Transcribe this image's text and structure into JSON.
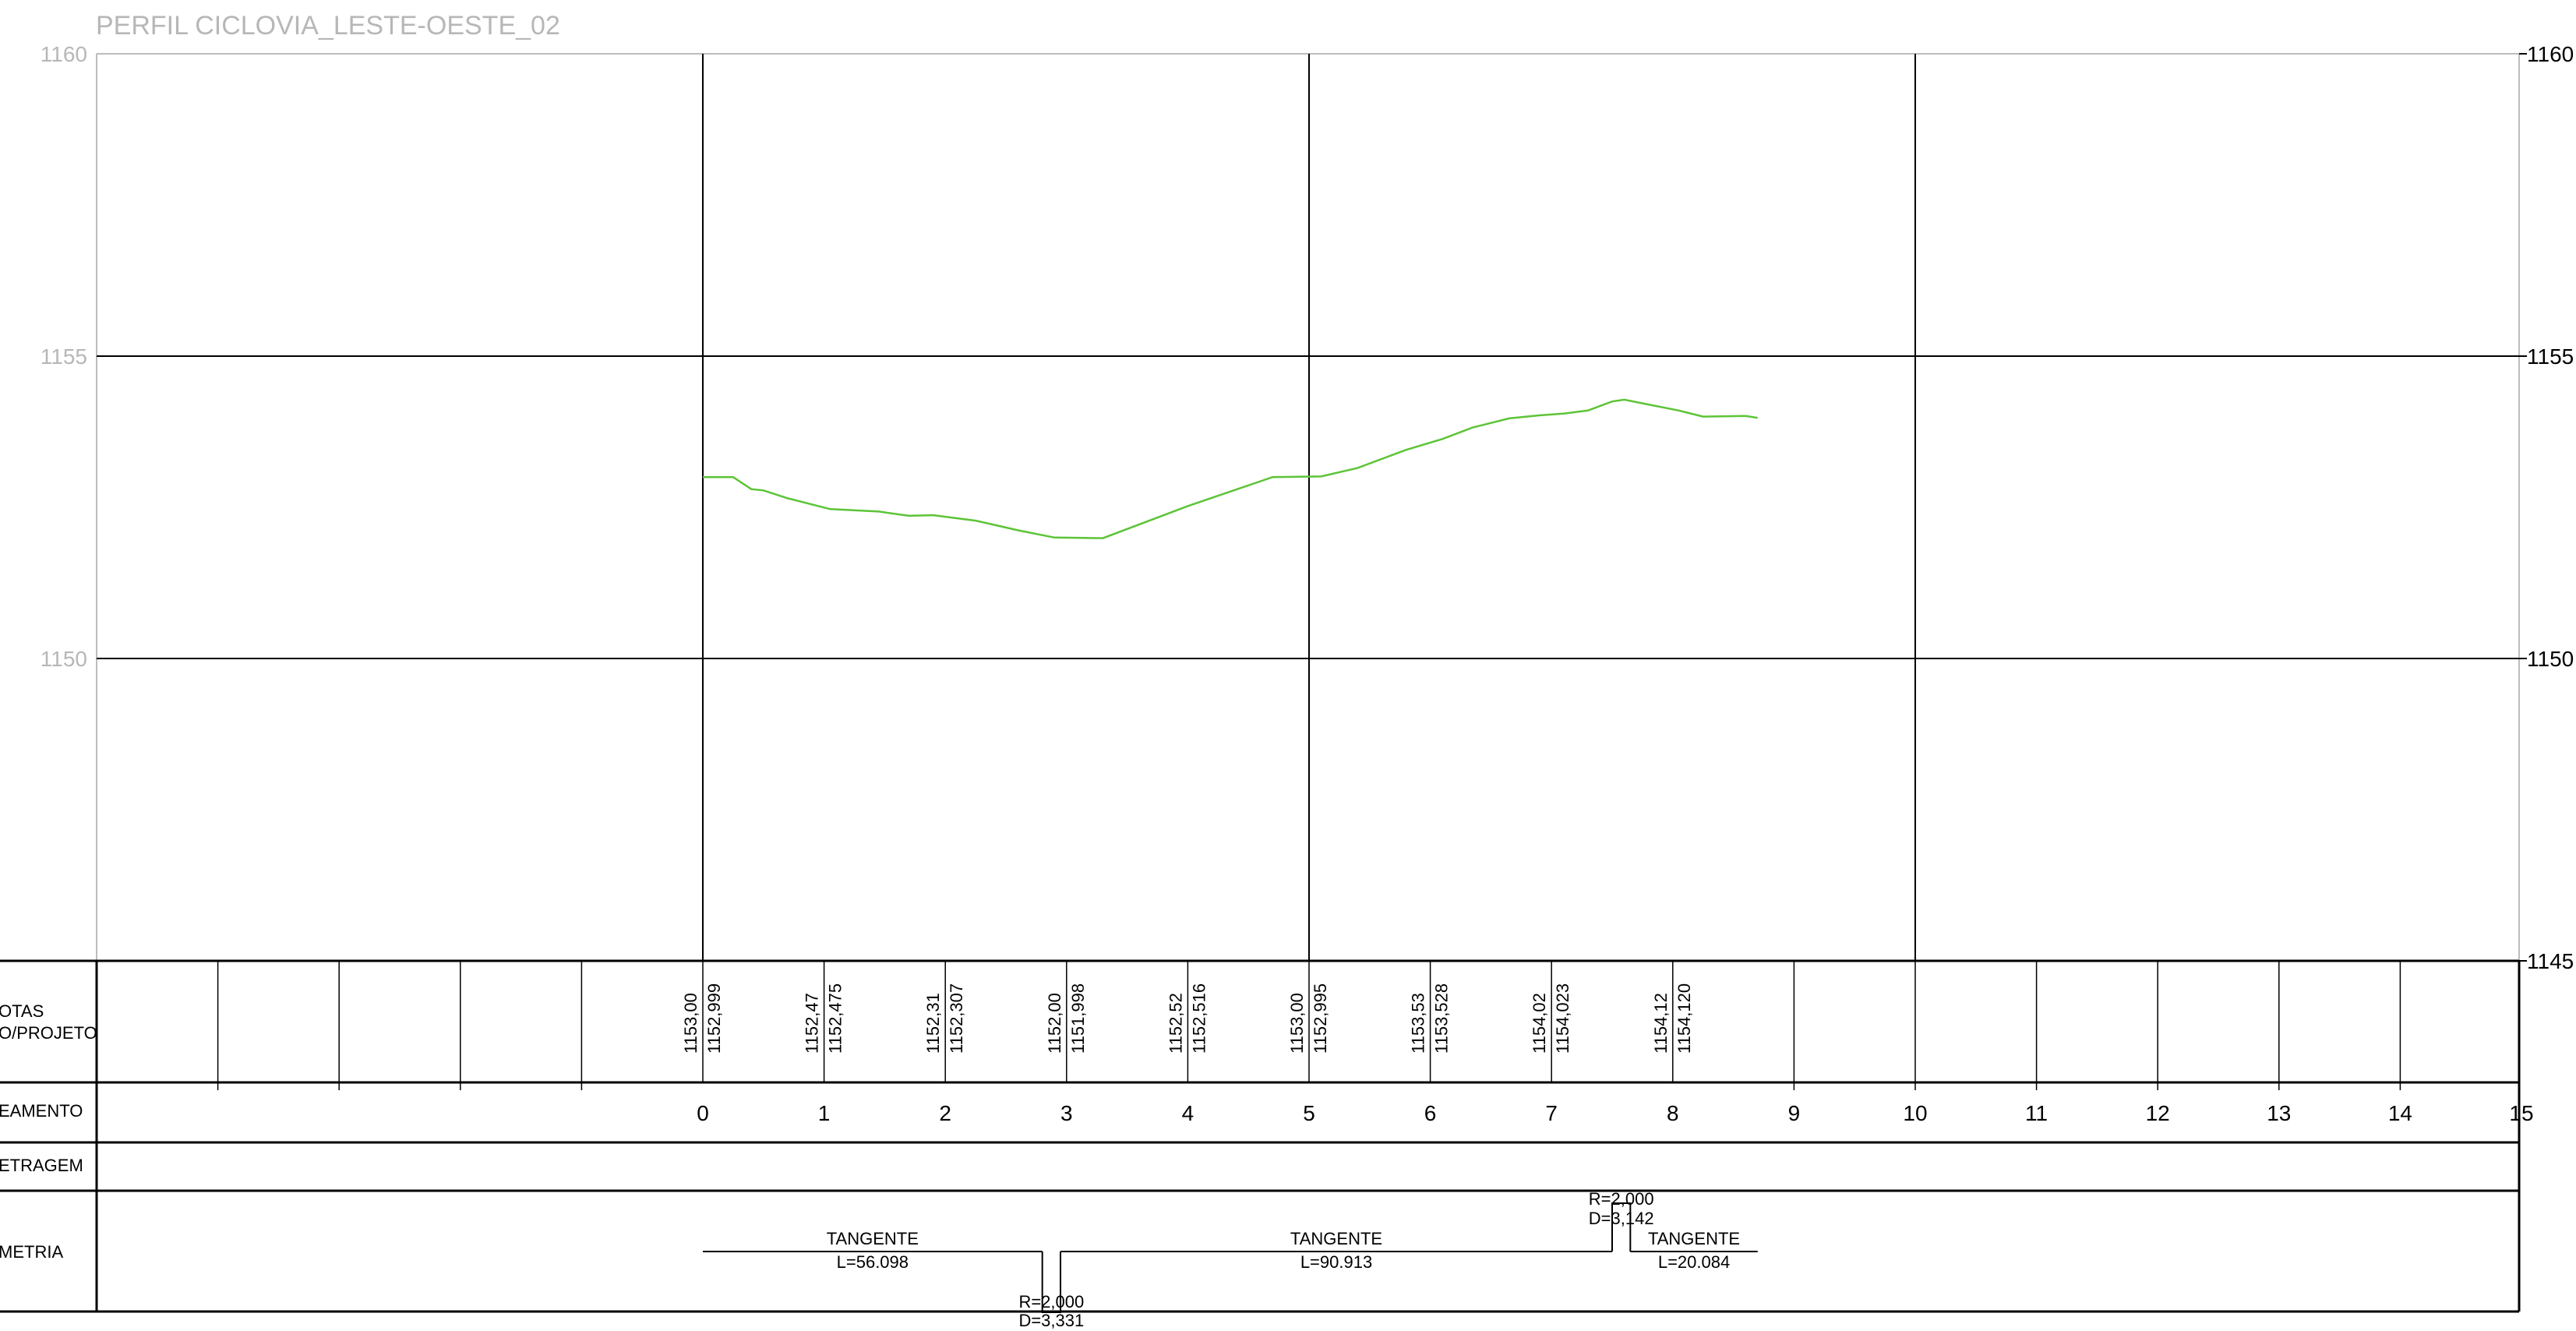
{
  "title": "PERFIL CICLOVIA_LESTE-OESTE_02",
  "chart_data": {
    "type": "line",
    "ylim": [
      1145,
      1160
    ],
    "xlim": [
      -5,
      15
    ],
    "y_ticks_left": [
      "1160",
      "1155",
      "1150"
    ],
    "y_ticks_right": [
      "1160",
      "1155",
      "1150",
      "1145"
    ],
    "major_verticals": [
      0,
      5,
      10
    ],
    "series": [
      {
        "color": "#5cc437",
        "x": [
          0,
          0.25,
          0.4,
          0.5,
          0.7,
          1.05,
          1.45,
          1.7,
          1.9,
          2.25,
          2.6,
          2.9,
          3.3,
          4.0,
          4.7,
          5.1,
          5.4,
          5.8,
          6.1,
          6.35,
          6.65,
          6.9,
          7.1,
          7.3,
          7.5,
          7.6,
          7.8,
          8.05,
          8.25,
          8.6,
          8.7
        ],
        "y": [
          1153.0,
          1153.0,
          1152.8,
          1152.78,
          1152.65,
          1152.47,
          1152.43,
          1152.36,
          1152.37,
          1152.28,
          1152.12,
          1152.0,
          1151.99,
          1152.52,
          1153.0,
          1153.01,
          1153.15,
          1153.45,
          1153.63,
          1153.82,
          1153.97,
          1154.02,
          1154.05,
          1154.1,
          1154.25,
          1154.28,
          1154.2,
          1154.1,
          1154.0,
          1154.01,
          1153.98
        ]
      }
    ]
  },
  "rows": {
    "cotas_label": "OTAS",
    "cotas_sublabel": "O/PROJETO",
    "estaqueamento_label": "EAMENTO",
    "metragem_label": "ETRAGEM",
    "geometria_label": "METRIA",
    "cota_columns": [
      {
        "station": 0,
        "terreno": "1153,00",
        "projeto": "1152,999"
      },
      {
        "station": 1,
        "terreno": "1152,47",
        "projeto": "1152,475"
      },
      {
        "station": 2,
        "terreno": "1152,31",
        "projeto": "1152,307"
      },
      {
        "station": 3,
        "terreno": "1152,00",
        "projeto": "1151,998"
      },
      {
        "station": 4,
        "terreno": "1152,52",
        "projeto": "1152,516"
      },
      {
        "station": 5,
        "terreno": "1153,00",
        "projeto": "1152,995"
      },
      {
        "station": 6,
        "terreno": "1153,53",
        "projeto": "1153,528"
      },
      {
        "station": 7,
        "terreno": "1154,02",
        "projeto": "1154,023"
      },
      {
        "station": 8,
        "terreno": "1154,12",
        "projeto": "1154,120"
      }
    ],
    "stations": [
      "0",
      "1",
      "2",
      "3",
      "4",
      "5",
      "6",
      "7",
      "8",
      "9",
      "10",
      "11",
      "12",
      "13",
      "14",
      "15"
    ],
    "geometry": {
      "tangents": [
        {
          "from": 0,
          "to": 2.8,
          "label": "TANGENTE",
          "length": "L=56.098"
        },
        {
          "from": 2.95,
          "to": 7.5,
          "label": "TANGENTE",
          "length": "L=90.913"
        },
        {
          "from": 7.65,
          "to": 8.7,
          "label": "TANGENTE",
          "length": "L=20.084"
        }
      ],
      "curves": [
        {
          "from": 2.8,
          "to": 2.95,
          "direction": "down",
          "radius": "R=2,000",
          "development": "D=3,331"
        },
        {
          "from": 7.5,
          "to": 7.65,
          "direction": "up",
          "radius": "R=2,000",
          "development": "D=3,142"
        }
      ]
    }
  }
}
